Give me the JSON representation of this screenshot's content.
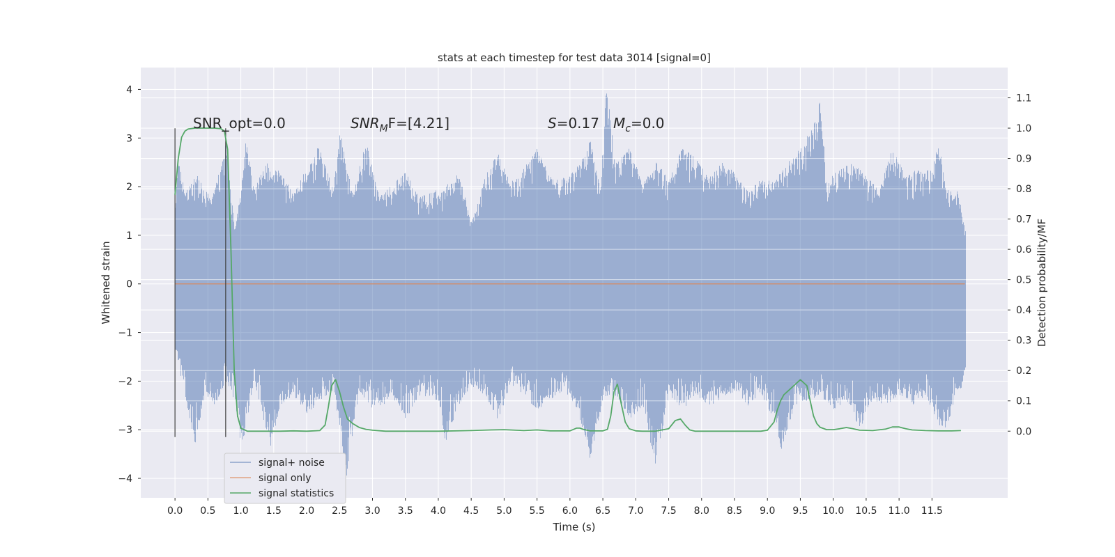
{
  "chart_data": {
    "type": "line",
    "title": "stats at each timestep for test data 3014 [signal=0]",
    "xlabel": "Time (s)",
    "ylabel": "Whitened strain",
    "y2label": "Detection probability/MF",
    "xlim": [
      -0.52,
      12.65
    ],
    "ylim": [
      -4.4,
      4.45
    ],
    "y2lim": [
      -0.22,
      1.2
    ],
    "grid": true,
    "legend_position": "lower-left",
    "x_ticks": [
      0.0,
      0.5,
      1.0,
      1.5,
      2.0,
      2.5,
      3.0,
      3.5,
      4.0,
      4.5,
      5.0,
      5.5,
      6.0,
      6.5,
      7.0,
      7.5,
      8.0,
      8.5,
      9.0,
      9.5,
      10.0,
      10.5,
      11.0,
      11.5
    ],
    "x_tick_labels": [
      "0.0",
      "0.5",
      "1.0",
      "1.5",
      "2.0",
      "2.5",
      "3.0",
      "3.5",
      "4.0",
      "4.5",
      "5.0",
      "5.5",
      "6.0",
      "6.5",
      "7.0",
      "7.5",
      "8.0",
      "8.5",
      "9.0",
      "9.5",
      "10.0",
      "10.5",
      "11.0",
      "11.5"
    ],
    "y_ticks": [
      4,
      3,
      2,
      1,
      0,
      -1,
      -2,
      -3,
      -4
    ],
    "y_tick_labels": [
      "4",
      "3",
      "2",
      "1",
      "0",
      "−1",
      "−2",
      "−3",
      "−4"
    ],
    "y2_ticks": [
      1.1,
      1.0,
      0.9,
      0.8,
      0.7,
      0.6,
      0.5,
      0.4,
      0.3,
      0.2,
      0.1,
      0.0
    ],
    "y2_tick_labels": [
      "1.1",
      "1.0",
      "0.9",
      "0.8",
      "0.7",
      "0.6",
      "0.5",
      "0.4",
      "0.3",
      "0.2",
      "0.1",
      "0.0"
    ],
    "annotations": {
      "snr_opt": "SNR_opt=0.0",
      "snr_mf_main": "SNR",
      "snr_mf_sub": "M",
      "snr_mf_rest": "F=[4.21]",
      "s_main": "S",
      "s_rest": "=0.17",
      "mc_main": "M",
      "mc_sub": "c",
      "mc_rest": "=0.0"
    },
    "vlines_x": [
      0.0,
      0.77
    ],
    "vline_range": [
      -3.15,
      3.2
    ],
    "noise_series": {
      "name": "signal+ noise",
      "color": "#4c72b0",
      "x_range": [
        0.0,
        12.0
      ],
      "max_series": [
        [
          0.0,
          1.6
        ],
        [
          0.05,
          2.7
        ],
        [
          0.15,
          1.9
        ],
        [
          0.3,
          2.3
        ],
        [
          0.45,
          2.0
        ],
        [
          0.55,
          1.7
        ],
        [
          0.77,
          2.9
        ],
        [
          0.9,
          1.2
        ],
        [
          1.0,
          1.9
        ],
        [
          1.05,
          3.1
        ],
        [
          1.2,
          2.0
        ],
        [
          1.4,
          2.5
        ],
        [
          1.6,
          2.3
        ],
        [
          1.8,
          1.9
        ],
        [
          2.0,
          2.4
        ],
        [
          2.2,
          2.9
        ],
        [
          2.4,
          1.9
        ],
        [
          2.5,
          3.2
        ],
        [
          2.7,
          1.8
        ],
        [
          2.9,
          3.0
        ],
        [
          3.1,
          1.8
        ],
        [
          3.3,
          2.1
        ],
        [
          3.5,
          2.3
        ],
        [
          3.7,
          1.8
        ],
        [
          3.9,
          1.9
        ],
        [
          4.1,
          2.0
        ],
        [
          4.3,
          2.3
        ],
        [
          4.5,
          1.3
        ],
        [
          4.7,
          2.2
        ],
        [
          4.9,
          2.7
        ],
        [
          5.1,
          2.1
        ],
        [
          5.3,
          2.4
        ],
        [
          5.5,
          2.8
        ],
        [
          5.7,
          2.2
        ],
        [
          5.9,
          2.2
        ],
        [
          6.1,
          2.4
        ],
        [
          6.3,
          3.0
        ],
        [
          6.45,
          2.0
        ],
        [
          6.55,
          4.1
        ],
        [
          6.7,
          2.5
        ],
        [
          6.9,
          2.8
        ],
        [
          7.1,
          2.1
        ],
        [
          7.3,
          2.5
        ],
        [
          7.5,
          2.2
        ],
        [
          7.7,
          2.8
        ],
        [
          7.9,
          2.6
        ],
        [
          8.1,
          2.2
        ],
        [
          8.3,
          2.5
        ],
        [
          8.5,
          2.3
        ],
        [
          8.7,
          1.9
        ],
        [
          8.9,
          2.2
        ],
        [
          9.1,
          2.1
        ],
        [
          9.3,
          2.5
        ],
        [
          9.5,
          2.8
        ],
        [
          9.7,
          3.3
        ],
        [
          9.8,
          3.8
        ],
        [
          9.9,
          2.1
        ],
        [
          10.1,
          2.4
        ],
        [
          10.3,
          2.5
        ],
        [
          10.5,
          2.2
        ],
        [
          10.7,
          2.0
        ],
        [
          10.9,
          2.8
        ],
        [
          11.1,
          2.2
        ],
        [
          11.3,
          2.4
        ],
        [
          11.5,
          2.4
        ],
        [
          11.6,
          3.0
        ],
        [
          11.7,
          2.0
        ],
        [
          11.9,
          1.9
        ],
        [
          12.0,
          1.1
        ]
      ],
      "min_series": [
        [
          0.0,
          -1.4
        ],
        [
          0.1,
          -2.0
        ],
        [
          0.3,
          -3.3
        ],
        [
          0.45,
          -2.3
        ],
        [
          0.6,
          -2.5
        ],
        [
          0.77,
          -2.0
        ],
        [
          0.9,
          -2.4
        ],
        [
          1.0,
          -3.5
        ],
        [
          1.2,
          -2.0
        ],
        [
          1.45,
          -3.4
        ],
        [
          1.6,
          -2.5
        ],
        [
          1.8,
          -2.3
        ],
        [
          2.0,
          -2.7
        ],
        [
          2.2,
          -2.4
        ],
        [
          2.4,
          -2.2
        ],
        [
          2.6,
          -4.0
        ],
        [
          2.8,
          -2.2
        ],
        [
          3.0,
          -2.6
        ],
        [
          3.3,
          -2.4
        ],
        [
          3.5,
          -2.8
        ],
        [
          3.7,
          -2.3
        ],
        [
          4.0,
          -2.4
        ],
        [
          4.1,
          -3.3
        ],
        [
          4.3,
          -2.5
        ],
        [
          4.5,
          -2.1
        ],
        [
          4.7,
          -2.3
        ],
        [
          4.9,
          -2.8
        ],
        [
          5.1,
          -2.1
        ],
        [
          5.3,
          -2.3
        ],
        [
          5.5,
          -2.6
        ],
        [
          5.7,
          -2.4
        ],
        [
          5.9,
          -2.2
        ],
        [
          6.1,
          -2.6
        ],
        [
          6.3,
          -3.6
        ],
        [
          6.5,
          -2.4
        ],
        [
          6.7,
          -2.3
        ],
        [
          6.9,
          -2.8
        ],
        [
          7.1,
          -2.5
        ],
        [
          7.3,
          -3.8
        ],
        [
          7.5,
          -2.3
        ],
        [
          7.7,
          -2.6
        ],
        [
          7.9,
          -2.3
        ],
        [
          8.1,
          -2.5
        ],
        [
          8.3,
          -2.4
        ],
        [
          8.5,
          -2.2
        ],
        [
          8.7,
          -2.5
        ],
        [
          8.9,
          -2.3
        ],
        [
          9.1,
          -2.8
        ],
        [
          9.2,
          -3.6
        ],
        [
          9.4,
          -2.5
        ],
        [
          9.6,
          -2.4
        ],
        [
          9.8,
          -2.3
        ],
        [
          10.0,
          -2.6
        ],
        [
          10.2,
          -2.4
        ],
        [
          10.4,
          -3.0
        ],
        [
          10.6,
          -2.4
        ],
        [
          10.8,
          -2.5
        ],
        [
          11.0,
          -2.3
        ],
        [
          11.2,
          -2.5
        ],
        [
          11.4,
          -2.3
        ],
        [
          11.6,
          -2.9
        ],
        [
          11.7,
          -3.1
        ],
        [
          11.85,
          -2.3
        ],
        [
          11.95,
          -2.2
        ],
        [
          12.0,
          -1.8
        ]
      ]
    },
    "signal_only": {
      "name": "signal only",
      "color": "#dd8452",
      "x": [
        0.0,
        12.0
      ],
      "y": [
        0.0,
        0.0
      ]
    },
    "detection": {
      "name": "signal statistics",
      "color": "#55a868",
      "x": [
        0.0,
        0.05,
        0.1,
        0.15,
        0.2,
        0.3,
        0.4,
        0.5,
        0.6,
        0.7,
        0.75,
        0.8,
        0.85,
        0.9,
        0.95,
        1.0,
        1.1,
        1.3,
        1.6,
        1.8,
        2.0,
        2.2,
        2.28,
        2.33,
        2.38,
        2.44,
        2.5,
        2.56,
        2.62,
        2.7,
        2.8,
        2.9,
        3.0,
        3.2,
        3.5,
        4.0,
        4.5,
        4.8,
        5.0,
        5.3,
        5.5,
        5.7,
        6.0,
        6.1,
        6.15,
        6.2,
        6.3,
        6.5,
        6.57,
        6.62,
        6.67,
        6.72,
        6.78,
        6.84,
        6.9,
        7.0,
        7.1,
        7.3,
        7.5,
        7.6,
        7.68,
        7.75,
        7.82,
        7.9,
        8.0,
        8.3,
        8.6,
        8.9,
        9.0,
        9.1,
        9.15,
        9.2,
        9.25,
        9.3,
        9.4,
        9.5,
        9.6,
        9.65,
        9.7,
        9.75,
        9.8,
        9.9,
        10.0,
        10.1,
        10.2,
        10.3,
        10.4,
        10.6,
        10.8,
        10.9,
        11.0,
        11.1,
        11.2,
        11.4,
        11.6,
        11.8,
        11.94
      ],
      "y": [
        0.78,
        0.9,
        0.97,
        0.99,
        0.997,
        1.0,
        1.0,
        1.0,
        1.0,
        0.998,
        0.99,
        0.93,
        0.6,
        0.2,
        0.05,
        0.01,
        0.0,
        0.0,
        0.0,
        0.001,
        0.0,
        0.002,
        0.02,
        0.08,
        0.15,
        0.17,
        0.13,
        0.08,
        0.04,
        0.025,
        0.012,
        0.006,
        0.003,
        0.0,
        0.0,
        0.0,
        0.002,
        0.004,
        0.005,
        0.002,
        0.004,
        0.001,
        0.001,
        0.01,
        0.01,
        0.006,
        0.001,
        0.001,
        0.006,
        0.05,
        0.13,
        0.155,
        0.09,
        0.03,
        0.008,
        0.001,
        0.0,
        0.0,
        0.008,
        0.035,
        0.04,
        0.02,
        0.004,
        0.0,
        0.0,
        0.0,
        0.0,
        0.0,
        0.003,
        0.03,
        0.07,
        0.1,
        0.12,
        0.13,
        0.15,
        0.17,
        0.15,
        0.1,
        0.05,
        0.025,
        0.013,
        0.005,
        0.005,
        0.008,
        0.012,
        0.008,
        0.003,
        0.002,
        0.007,
        0.014,
        0.014,
        0.008,
        0.004,
        0.002,
        0.001,
        0.001,
        0.002
      ]
    },
    "colors": {
      "plot_bg": "#eaeaf2",
      "grid": "#ffffff",
      "text": "#262626",
      "vline": "#404040"
    }
  }
}
